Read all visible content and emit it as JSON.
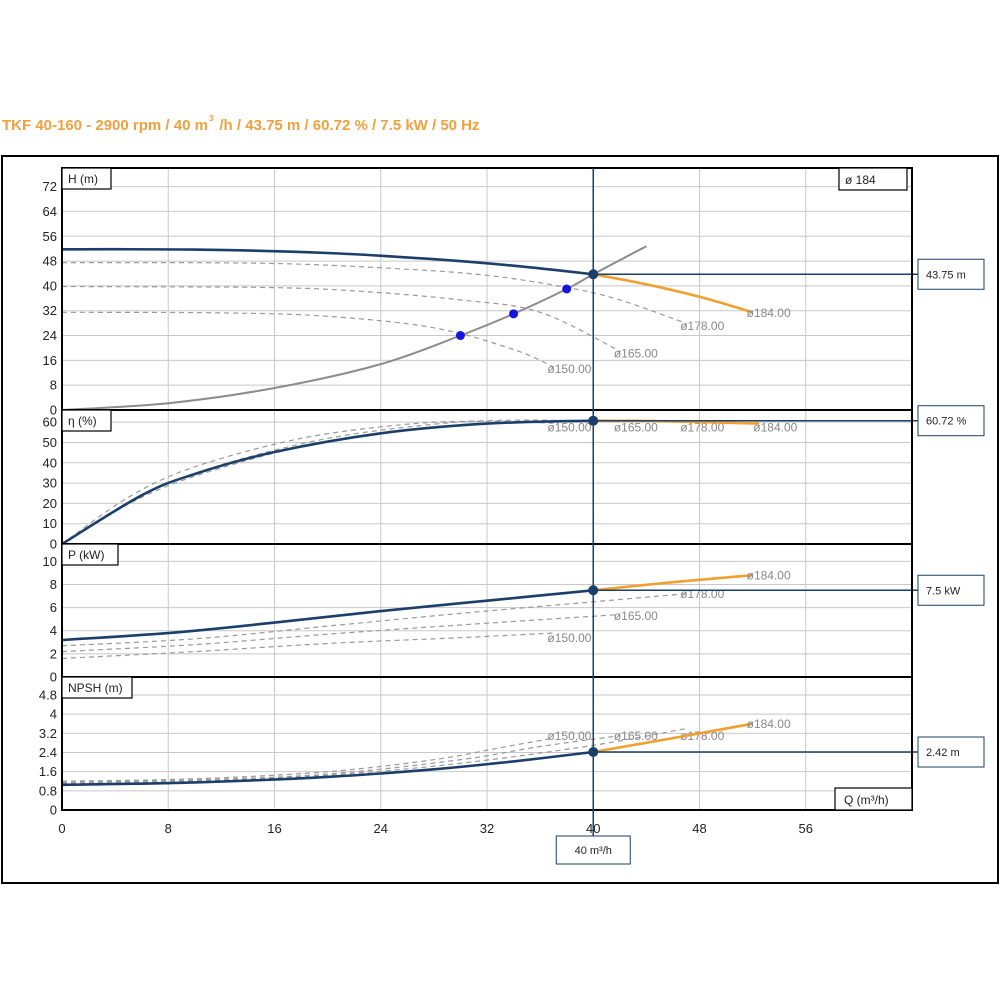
{
  "title": {
    "part1": "TKF 40-160 - 2900 rpm / 40 m",
    "sup": "3",
    "part2": "/h / 43.75 m / 60.72 % / 7.5 kW / 50 Hz"
  },
  "colors": {
    "title": "#f0a03c",
    "main_curve": "#1b3f6b",
    "operating_extension": "#f0a030",
    "other_diameters": "#999999",
    "system_curve": "#8c8c8c",
    "intersections": "#1515e0",
    "grid": "#c8c8c8",
    "frame": "#000000"
  },
  "chart_data": {
    "type": "line",
    "x_axis": {
      "label": "Q (m³/h)",
      "range": [
        0,
        64
      ],
      "ticks": [
        0,
        8,
        16,
        24,
        32,
        40,
        48,
        56
      ],
      "tick_labels": [
        "0",
        "8",
        "16",
        "24",
        "32",
        "40",
        "48",
        "56"
      ]
    },
    "selected_diameter_label": "ø 184",
    "operating_point": {
      "Q": 40,
      "label": "40 m³/h"
    },
    "panels": [
      {
        "key": "head",
        "ylabel": "H (m)",
        "ylim": [
          0,
          78
        ],
        "ticks": [
          0,
          8,
          16,
          24,
          32,
          40,
          48,
          56,
          64,
          72
        ],
        "tick_labels": [
          "0",
          "8",
          "16",
          "24",
          "32",
          "40",
          "48",
          "56",
          "64",
          "72"
        ],
        "operating_value": 43.75,
        "callout": "43.75 m",
        "main_curve": [
          [
            0,
            51.8
          ],
          [
            10,
            51.7
          ],
          [
            20,
            50.6
          ],
          [
            28,
            48.6
          ],
          [
            34,
            46.5
          ],
          [
            40,
            43.75
          ]
        ],
        "extension": [
          [
            40,
            43.75
          ],
          [
            44,
            40.5
          ],
          [
            48,
            36.5
          ],
          [
            52,
            31.5
          ]
        ],
        "diameters": [
          {
            "label": "ø178.00",
            "points": [
              [
                0,
                47.5
              ],
              [
                15,
                47.3
              ],
              [
                25,
                45.6
              ],
              [
                32,
                43.4
              ],
              [
                38,
                39.5
              ],
              [
                42,
                35.5
              ],
              [
                47,
                27.9
              ]
            ],
            "label_at": [
              47,
              27.3
            ]
          },
          {
            "label": "ø165.00",
            "points": [
              [
                0,
                39.8
              ],
              [
                15,
                39.5
              ],
              [
                22,
                38.4
              ],
              [
                30,
                35.5
              ],
              [
                36,
                31.5
              ],
              [
                42,
                19.0
              ]
            ],
            "label_at": [
              42,
              18.4
            ]
          },
          {
            "label": "ø150.00",
            "points": [
              [
                0,
                31.5
              ],
              [
                12,
                31.3
              ],
              [
                20,
                30.2
              ],
              [
                28,
                26.5
              ],
              [
                34,
                19.5
              ],
              [
                37,
                13.9
              ]
            ],
            "label_at": [
              37,
              13.3
            ]
          }
        ],
        "system_curve": [
          [
            0,
            0
          ],
          [
            8,
            2.2
          ],
          [
            16,
            7.1
          ],
          [
            24,
            14.8
          ],
          [
            30,
            24
          ],
          [
            34,
            31
          ],
          [
            38,
            39
          ],
          [
            40,
            43.75
          ],
          [
            44,
            52.8
          ]
        ],
        "intersections": [
          [
            30,
            24
          ],
          [
            34,
            31
          ],
          [
            38,
            39
          ]
        ]
      },
      {
        "key": "efficiency",
        "ylabel": "η (%)",
        "ylim": [
          0,
          66
        ],
        "ticks": [
          0,
          10,
          20,
          30,
          40,
          50,
          60
        ],
        "tick_labels": [
          "0",
          "10",
          "20",
          "30",
          "40",
          "50",
          "60"
        ],
        "operating_value": 60.72,
        "callout": "60.72 %",
        "main_curve": [
          [
            0,
            0
          ],
          [
            6,
            24
          ],
          [
            10,
            34.5
          ],
          [
            16,
            45.3
          ],
          [
            24,
            54.5
          ],
          [
            32,
            59.3
          ],
          [
            40,
            60.72
          ]
        ],
        "extension": [
          [
            40,
            60.72
          ],
          [
            46,
            60.4
          ],
          [
            52.5,
            59.3
          ]
        ],
        "diameters": [
          {
            "label": "ø150.00",
            "points": [
              [
                0,
                0
              ],
              [
                5,
                23
              ],
              [
                10,
                38
              ],
              [
                18,
                52
              ],
              [
                26,
                59
              ],
              [
                32,
                60.5
              ],
              [
                37,
                59.5
              ]
            ],
            "label_at": [
              37,
              57.6
            ]
          },
          {
            "label": "ø165.00",
            "points": [
              [
                0,
                0
              ],
              [
                6,
                24
              ],
              [
                12,
                39
              ],
              [
                20,
                52
              ],
              [
                28,
                59
              ],
              [
                34,
                61
              ],
              [
                42,
                60.2
              ]
            ],
            "label_at": [
              42,
              57.6
            ]
          },
          {
            "label": "ø178.00",
            "points": [
              [
                0,
                0
              ],
              [
                6,
                23
              ],
              [
                12,
                37.5
              ],
              [
                20,
                50.5
              ],
              [
                30,
                58.5
              ],
              [
                40,
                60.8
              ],
              [
                47,
                59.8
              ]
            ],
            "label_at": [
              47,
              57.6
            ]
          }
        ]
      },
      {
        "key": "power",
        "ylabel": "P (kW)",
        "ylim": [
          0,
          11.5
        ],
        "ticks": [
          0,
          2,
          4,
          6,
          8,
          10
        ],
        "tick_labels": [
          "0",
          "2",
          "4",
          "6",
          "8",
          "10"
        ],
        "operating_value": 7.5,
        "callout": "7.5 kW",
        "main_curve": [
          [
            0,
            3.2
          ],
          [
            8,
            3.8
          ],
          [
            16,
            4.7
          ],
          [
            24,
            5.7
          ],
          [
            32,
            6.6
          ],
          [
            40,
            7.5
          ]
        ],
        "extension": [
          [
            40,
            7.5
          ],
          [
            46,
            8.2
          ],
          [
            52,
            8.8
          ]
        ],
        "diameters": [
          {
            "label": "ø178.00",
            "points": [
              [
                0,
                2.7
              ],
              [
                10,
                3.3
              ],
              [
                20,
                4.4
              ],
              [
                30,
                5.5
              ],
              [
                40,
                6.5
              ],
              [
                47,
                7.2
              ]
            ],
            "label_at": [
              47,
              7.2
            ]
          },
          {
            "label": "ø165.00",
            "points": [
              [
                0,
                2.2
              ],
              [
                10,
                2.8
              ],
              [
                20,
                3.7
              ],
              [
                30,
                4.5
              ],
              [
                42,
                5.4
              ]
            ],
            "label_at": [
              42,
              5.3
            ]
          },
          {
            "label": "ø150.00",
            "points": [
              [
                0,
                1.6
              ],
              [
                10,
                2.2
              ],
              [
                20,
                2.9
              ],
              [
                30,
                3.4
              ],
              [
                37,
                3.8
              ]
            ],
            "label_at": [
              37,
              3.4
            ]
          }
        ]
      },
      {
        "key": "npsh",
        "ylabel": "NPSH (m)",
        "ylim": [
          0,
          5.55
        ],
        "ticks": [
          0,
          0.8,
          1.6,
          2.4,
          3.2,
          4,
          4.8
        ],
        "tick_labels": [
          "0",
          "0.8",
          "1.6",
          "2.4",
          "3.2",
          "4",
          "4.8"
        ],
        "operating_value": 2.42,
        "callout": "2.42 m",
        "main_curve": [
          [
            0,
            1.05
          ],
          [
            10,
            1.15
          ],
          [
            20,
            1.38
          ],
          [
            28,
            1.7
          ],
          [
            34,
            2.03
          ],
          [
            40,
            2.42
          ]
        ],
        "extension": [
          [
            40,
            2.42
          ],
          [
            46,
            3.0
          ],
          [
            52,
            3.6
          ]
        ],
        "diameters": [
          {
            "label": "ø150.00",
            "points": [
              [
                0,
                1.2
              ],
              [
                10,
                1.3
              ],
              [
                20,
                1.6
              ],
              [
                28,
                2.1
              ],
              [
                33,
                2.6
              ],
              [
                37,
                3.0
              ]
            ],
            "label_at": [
              37,
              3.1
            ]
          },
          {
            "label": "ø165.00",
            "points": [
              [
                0,
                1.15
              ],
              [
                10,
                1.25
              ],
              [
                20,
                1.5
              ],
              [
                30,
                2.1
              ],
              [
                36,
                2.65
              ],
              [
                42,
                3.1
              ]
            ],
            "label_at": [
              42,
              3.1
            ]
          },
          {
            "label": "ø178.00",
            "points": [
              [
                0,
                1.1
              ],
              [
                10,
                1.2
              ],
              [
                20,
                1.45
              ],
              [
                30,
                1.95
              ],
              [
                40,
                2.7
              ],
              [
                47,
                3.4
              ]
            ],
            "label_at": [
              47,
              3.1
            ]
          }
        ],
        "extra_label": {
          "label": "ø184.00",
          "at": [
            52,
            3.6
          ]
        }
      }
    ],
    "selected_diameter": {
      "label": "ø184.00"
    }
  }
}
